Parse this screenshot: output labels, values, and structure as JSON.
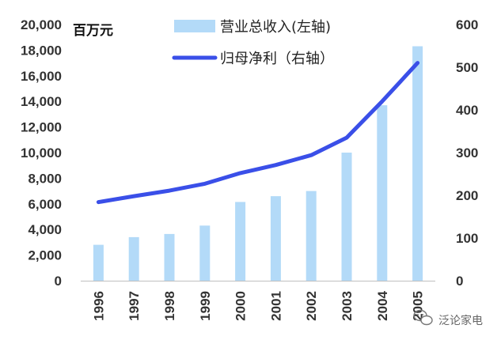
{
  "chart_data": {
    "type": "bar+line",
    "unit_label": "百万元",
    "categories": [
      "1996",
      "1997",
      "1998",
      "1999",
      "2000",
      "2001",
      "2002",
      "2003",
      "2004",
      "2005"
    ],
    "series": [
      {
        "name": "营业总收入(左轴)",
        "type": "bar",
        "axis": "left",
        "color": "#b3daf8",
        "values": [
          2800,
          3400,
          3650,
          4300,
          6150,
          6600,
          7000,
          10000,
          13700,
          18300
        ]
      },
      {
        "name": "归母净利（右轴）",
        "type": "line",
        "axis": "right",
        "color": "#3a4fe8",
        "values": [
          184,
          198,
          211,
          227,
          252,
          271,
          294,
          335,
          420,
          510
        ]
      }
    ],
    "y_left": {
      "min": 0,
      "max": 20000,
      "ticks": [
        "0",
        "2,000",
        "4,000",
        "6,000",
        "8,000",
        "10,000",
        "12,000",
        "14,000",
        "16,000",
        "18,000",
        "20,000"
      ]
    },
    "y_right": {
      "min": 0,
      "max": 600,
      "ticks": [
        "0",
        "100",
        "200",
        "300",
        "400",
        "500",
        "600"
      ]
    },
    "grid": false,
    "legend_position": "top-center"
  },
  "watermark": {
    "text": "泛论家电",
    "icon": "wechat-icon"
  }
}
